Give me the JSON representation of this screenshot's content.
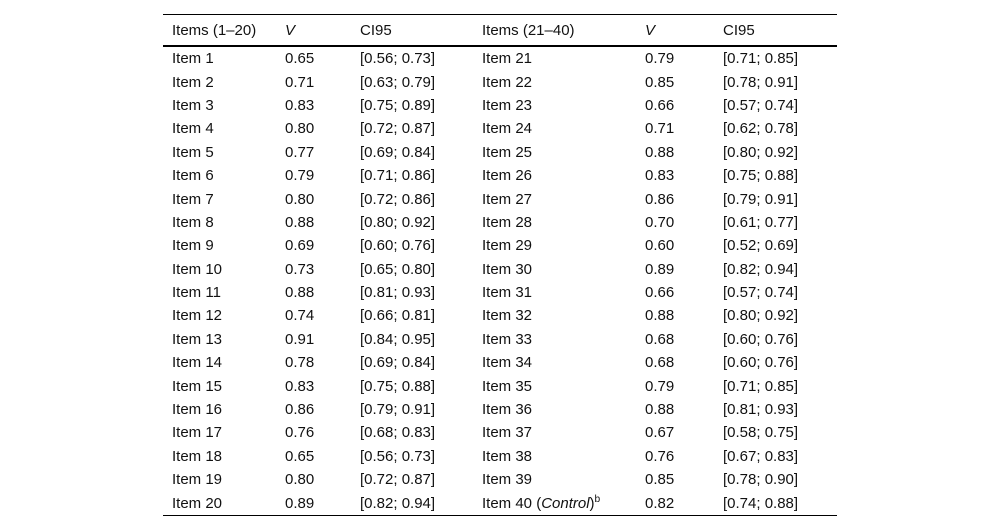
{
  "table": {
    "columns": [
      "Items (1–20)",
      "V",
      "CI95",
      "Items (21–40)",
      "V",
      "CI95"
    ],
    "rows": [
      {
        "item1": "Item 1",
        "v1": "0.65",
        "ci1": "[0.56; 0.73]",
        "item2": "Item 21",
        "v2": "0.79",
        "ci2": "[0.71; 0.85]"
      },
      {
        "item1": "Item 2",
        "v1": "0.71",
        "ci1": "[0.63; 0.79]",
        "item2": "Item 22",
        "v2": "0.85",
        "ci2": "[0.78; 0.91]"
      },
      {
        "item1": "Item 3",
        "v1": "0.83",
        "ci1": "[0.75; 0.89]",
        "item2": "Item 23",
        "v2": "0.66",
        "ci2": "[0.57; 0.74]"
      },
      {
        "item1": "Item 4",
        "v1": "0.80",
        "ci1": "[0.72; 0.87]",
        "item2": "Item 24",
        "v2": "0.71",
        "ci2": "[0.62; 0.78]"
      },
      {
        "item1": "Item 5",
        "v1": "0.77",
        "ci1": "[0.69; 0.84]",
        "item2": "Item 25",
        "v2": "0.88",
        "ci2": "[0.80; 0.92]"
      },
      {
        "item1": "Item 6",
        "v1": "0.79",
        "ci1": "[0.71; 0.86]",
        "item2": "Item 26",
        "v2": "0.83",
        "ci2": "[0.75; 0.88]"
      },
      {
        "item1": "Item 7",
        "v1": "0.80",
        "ci1": "[0.72; 0.86]",
        "item2": "Item 27",
        "v2": "0.86",
        "ci2": "[0.79; 0.91]"
      },
      {
        "item1": "Item 8",
        "v1": "0.88",
        "ci1": "[0.80; 0.92]",
        "item2": "Item 28",
        "v2": "0.70",
        "ci2": "[0.61; 0.77]"
      },
      {
        "item1": "Item 9",
        "v1": "0.69",
        "ci1": "[0.60; 0.76]",
        "item2": "Item 29",
        "v2": "0.60",
        "ci2": "[0.52; 0.69]"
      },
      {
        "item1": "Item 10",
        "v1": "0.73",
        "ci1": "[0.65; 0.80]",
        "item2": "Item 30",
        "v2": "0.89",
        "ci2": "[0.82; 0.94]"
      },
      {
        "item1": "Item 11",
        "v1": "0.88",
        "ci1": "[0.81; 0.93]",
        "item2": "Item 31",
        "v2": "0.66",
        "ci2": "[0.57; 0.74]"
      },
      {
        "item1": "Item 12",
        "v1": "0.74",
        "ci1": "[0.66; 0.81]",
        "item2": "Item 32",
        "v2": "0.88",
        "ci2": "[0.80; 0.92]"
      },
      {
        "item1": "Item 13",
        "v1": "0.91",
        "ci1": "[0.84; 0.95]",
        "item2": "Item 33",
        "v2": "0.68",
        "ci2": "[0.60; 0.76]"
      },
      {
        "item1": "Item 14",
        "v1": "0.78",
        "ci1": "[0.69; 0.84]",
        "item2": "Item 34",
        "v2": "0.68",
        "ci2": "[0.60; 0.76]"
      },
      {
        "item1": "Item 15",
        "v1": "0.83",
        "ci1": "[0.75; 0.88]",
        "item2": "Item 35",
        "v2": "0.79",
        "ci2": "[0.71; 0.85]"
      },
      {
        "item1": "Item 16",
        "v1": "0.86",
        "ci1": "[0.79; 0.91]",
        "item2": "Item 36",
        "v2": "0.88",
        "ci2": "[0.81; 0.93]"
      },
      {
        "item1": "Item 17",
        "v1": "0.76",
        "ci1": "[0.68; 0.83]",
        "item2": "Item 37",
        "v2": "0.67",
        "ci2": "[0.58; 0.75]"
      },
      {
        "item1": "Item 18",
        "v1": "0.65",
        "ci1": "[0.56; 0.73]",
        "item2": "Item 38",
        "v2": "0.76",
        "ci2": "[0.67; 0.83]"
      },
      {
        "item1": "Item 19",
        "v1": "0.80",
        "ci1": "[0.72; 0.87]",
        "item2": "Item 39",
        "v2": "0.85",
        "ci2": "[0.78; 0.90]"
      },
      {
        "item1": "Item 20",
        "v1": "0.89",
        "ci1": "[0.82; 0.94]",
        "item2_prefix": "Item 40 (",
        "item2_italic": "Control",
        "item2_suffix": ")",
        "item2_sup": "b",
        "v2": "0.82",
        "ci2": "[0.74; 0.88]"
      }
    ]
  }
}
